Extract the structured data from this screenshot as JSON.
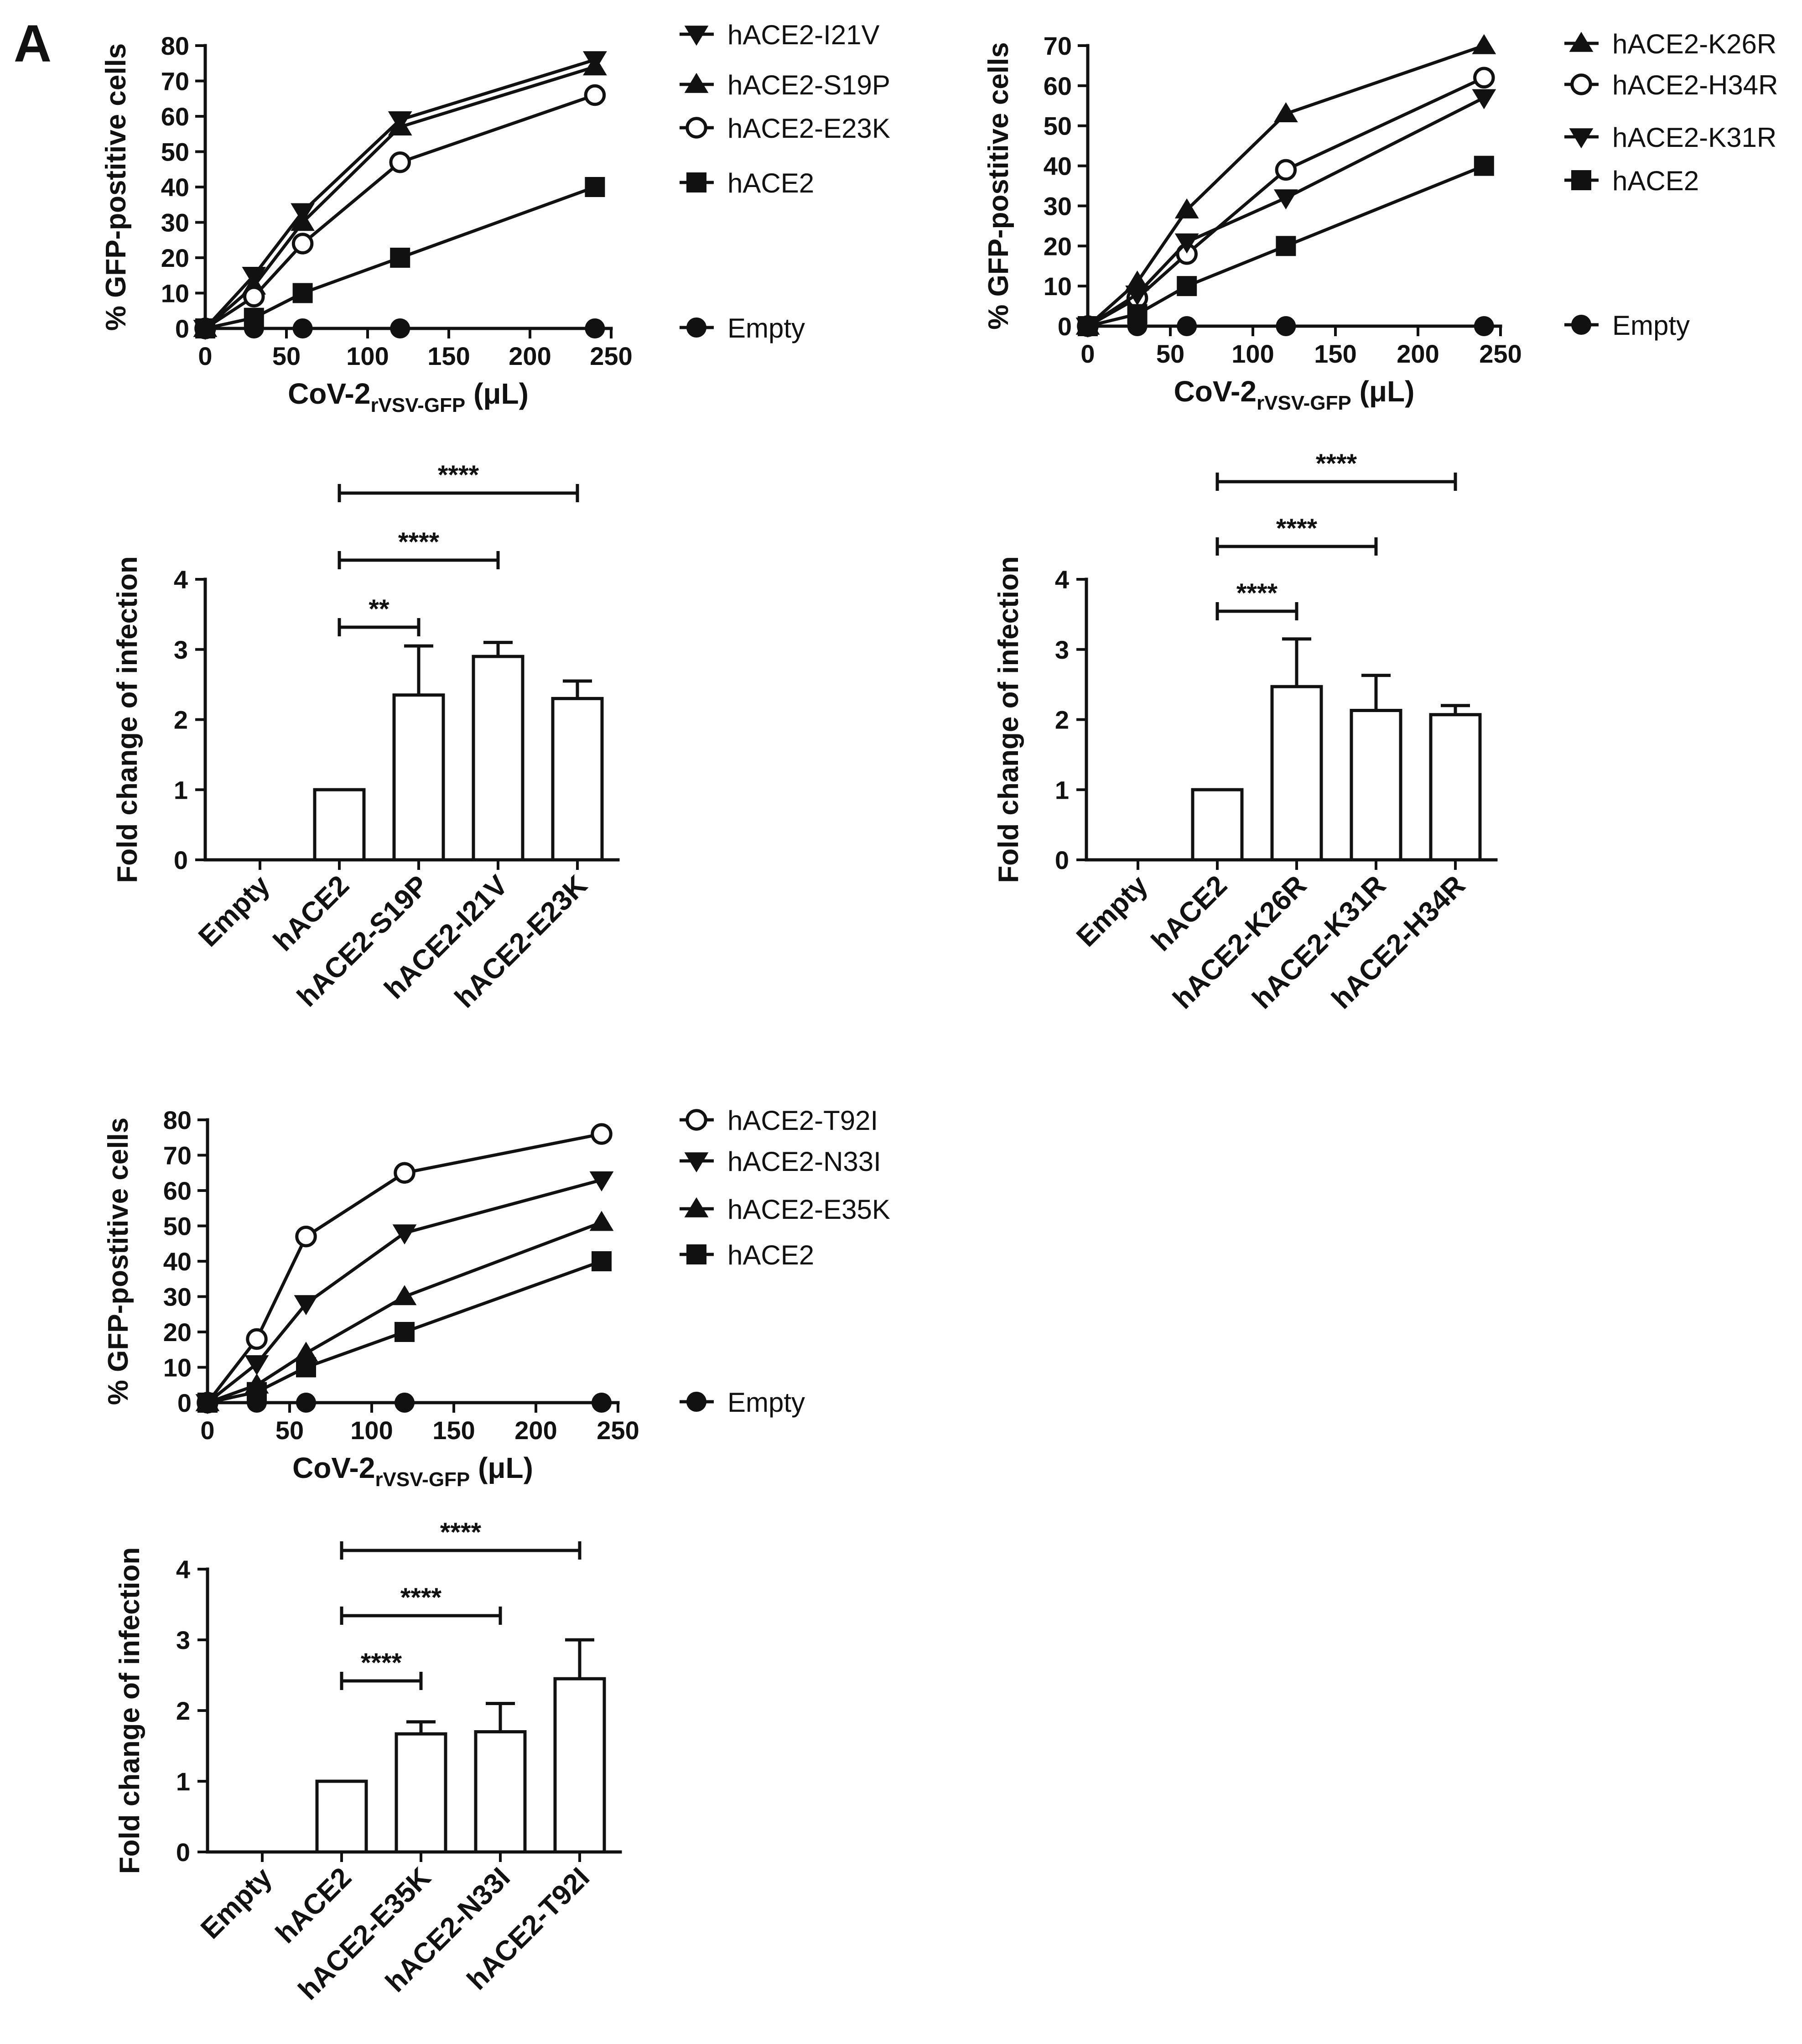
{
  "panel_letter": "A",
  "chart_data": [
    {
      "type": "line",
      "title": "",
      "ylabel": "% GFP-postitive cells",
      "xlabel_main": "CoV-2",
      "xlabel_sub": "rVSV-GFP",
      "xlabel_unit": "(μL)",
      "xlim": [
        0,
        250
      ],
      "ylim": [
        0,
        80
      ],
      "xticks": [
        0,
        50,
        100,
        150,
        200,
        250
      ],
      "yticks": [
        0,
        10,
        20,
        30,
        40,
        50,
        60,
        70,
        80
      ],
      "x": [
        0,
        30,
        60,
        120,
        240
      ],
      "series": [
        {
          "name": "hACE2-I21V",
          "marker": "triangle-down",
          "values": [
            0,
            15,
            33,
            59,
            76
          ]
        },
        {
          "name": "hACE2-S19P",
          "marker": "triangle-up",
          "values": [
            0,
            12,
            30,
            57,
            74
          ]
        },
        {
          "name": "hACE2-E23K",
          "marker": "circle-open",
          "values": [
            0,
            9,
            24,
            47,
            66
          ]
        },
        {
          "name": "hACE2",
          "marker": "square",
          "values": [
            0,
            3,
            10,
            20,
            40
          ]
        },
        {
          "name": "Empty",
          "marker": "circle",
          "values": [
            0,
            0,
            0,
            0,
            0
          ]
        }
      ]
    },
    {
      "type": "line",
      "title": "",
      "ylabel": "% GFP-postitive cells",
      "xlabel_main": "CoV-2",
      "xlabel_sub": "rVSV-GFP",
      "xlabel_unit": "(μL)",
      "xlim": [
        0,
        250
      ],
      "ylim": [
        0,
        70
      ],
      "xticks": [
        0,
        50,
        100,
        150,
        200,
        250
      ],
      "yticks": [
        0,
        10,
        20,
        30,
        40,
        50,
        60,
        70
      ],
      "x": [
        0,
        30,
        60,
        120,
        240
      ],
      "series": [
        {
          "name": "hACE2-K26R",
          "marker": "triangle-up",
          "values": [
            0,
            11,
            29,
            53,
            70
          ]
        },
        {
          "name": "hACE2-H34R",
          "marker": "circle-open",
          "values": [
            0,
            7,
            18,
            39,
            62
          ]
        },
        {
          "name": "hACE2-K31R",
          "marker": "triangle-down",
          "values": [
            0,
            8,
            21,
            32,
            57
          ]
        },
        {
          "name": "hACE2",
          "marker": "square",
          "values": [
            0,
            3,
            10,
            20,
            40
          ]
        },
        {
          "name": "Empty",
          "marker": "circle",
          "values": [
            0,
            0,
            0,
            0,
            0
          ]
        }
      ]
    },
    {
      "type": "bar",
      "title": "",
      "ylabel": "Fold change of infection",
      "ylim": [
        0,
        4
      ],
      "yticks": [
        0,
        1,
        2,
        3,
        4
      ],
      "categories": [
        "Empty",
        "hACE2",
        "hACE2-S19P",
        "hACE2-I21V",
        "hACE2-E23K"
      ],
      "values": [
        0,
        1,
        2.35,
        2.9,
        2.3
      ],
      "errors": [
        0,
        0,
        0.7,
        0.2,
        0.25
      ],
      "significance": [
        {
          "from": 1,
          "to": 2,
          "label": "**"
        },
        {
          "from": 1,
          "to": 3,
          "label": "****"
        },
        {
          "from": 1,
          "to": 4,
          "label": "****"
        }
      ]
    },
    {
      "type": "bar",
      "title": "",
      "ylabel": "Fold change of infection",
      "ylim": [
        0,
        4
      ],
      "yticks": [
        0,
        1,
        2,
        3,
        4
      ],
      "categories": [
        "Empty",
        "hACE2",
        "hACE2-K26R",
        "hACE2-K31R",
        "hACE2-H34R"
      ],
      "values": [
        0,
        1,
        2.47,
        2.13,
        2.07
      ],
      "errors": [
        0,
        0,
        0.68,
        0.5,
        0.13
      ],
      "significance": [
        {
          "from": 1,
          "to": 2,
          "label": "****"
        },
        {
          "from": 1,
          "to": 3,
          "label": "****"
        },
        {
          "from": 1,
          "to": 4,
          "label": "****"
        }
      ]
    },
    {
      "type": "line",
      "title": "",
      "ylabel": "% GFP-postitive cells",
      "xlabel_main": "CoV-2",
      "xlabel_sub": "rVSV-GFP",
      "xlabel_unit": "(μL)",
      "xlim": [
        0,
        250
      ],
      "ylim": [
        0,
        80
      ],
      "xticks": [
        0,
        50,
        100,
        150,
        200,
        250
      ],
      "yticks": [
        0,
        10,
        20,
        30,
        40,
        50,
        60,
        70,
        80
      ],
      "x": [
        0,
        30,
        60,
        120,
        240
      ],
      "series": [
        {
          "name": "hACE2-T92I",
          "marker": "circle-open",
          "values": [
            0,
            18,
            47,
            65,
            76
          ]
        },
        {
          "name": "hACE2-N33I",
          "marker": "triangle-down",
          "values": [
            0,
            11,
            28,
            48,
            63
          ]
        },
        {
          "name": "hACE2-E35K",
          "marker": "triangle-up",
          "values": [
            0,
            5,
            14,
            30,
            51
          ]
        },
        {
          "name": "hACE2",
          "marker": "square",
          "values": [
            0,
            3,
            10,
            20,
            40
          ]
        },
        {
          "name": "Empty",
          "marker": "circle",
          "values": [
            0,
            0,
            0,
            0,
            0
          ]
        }
      ]
    },
    {
      "type": "bar",
      "title": "",
      "ylabel": "Fold change of infection",
      "ylim": [
        0,
        4
      ],
      "yticks": [
        0,
        1,
        2,
        3,
        4
      ],
      "categories": [
        "Empty",
        "hACE2",
        "hACE2-E35K",
        "hACE2-N33I",
        "hACE2-T92I"
      ],
      "values": [
        0,
        1,
        1.67,
        1.7,
        2.45
      ],
      "errors": [
        0,
        0,
        0.17,
        0.4,
        0.55
      ],
      "significance": [
        {
          "from": 1,
          "to": 2,
          "label": "****"
        },
        {
          "from": 1,
          "to": 3,
          "label": "****"
        },
        {
          "from": 1,
          "to": 4,
          "label": "****"
        }
      ]
    }
  ]
}
